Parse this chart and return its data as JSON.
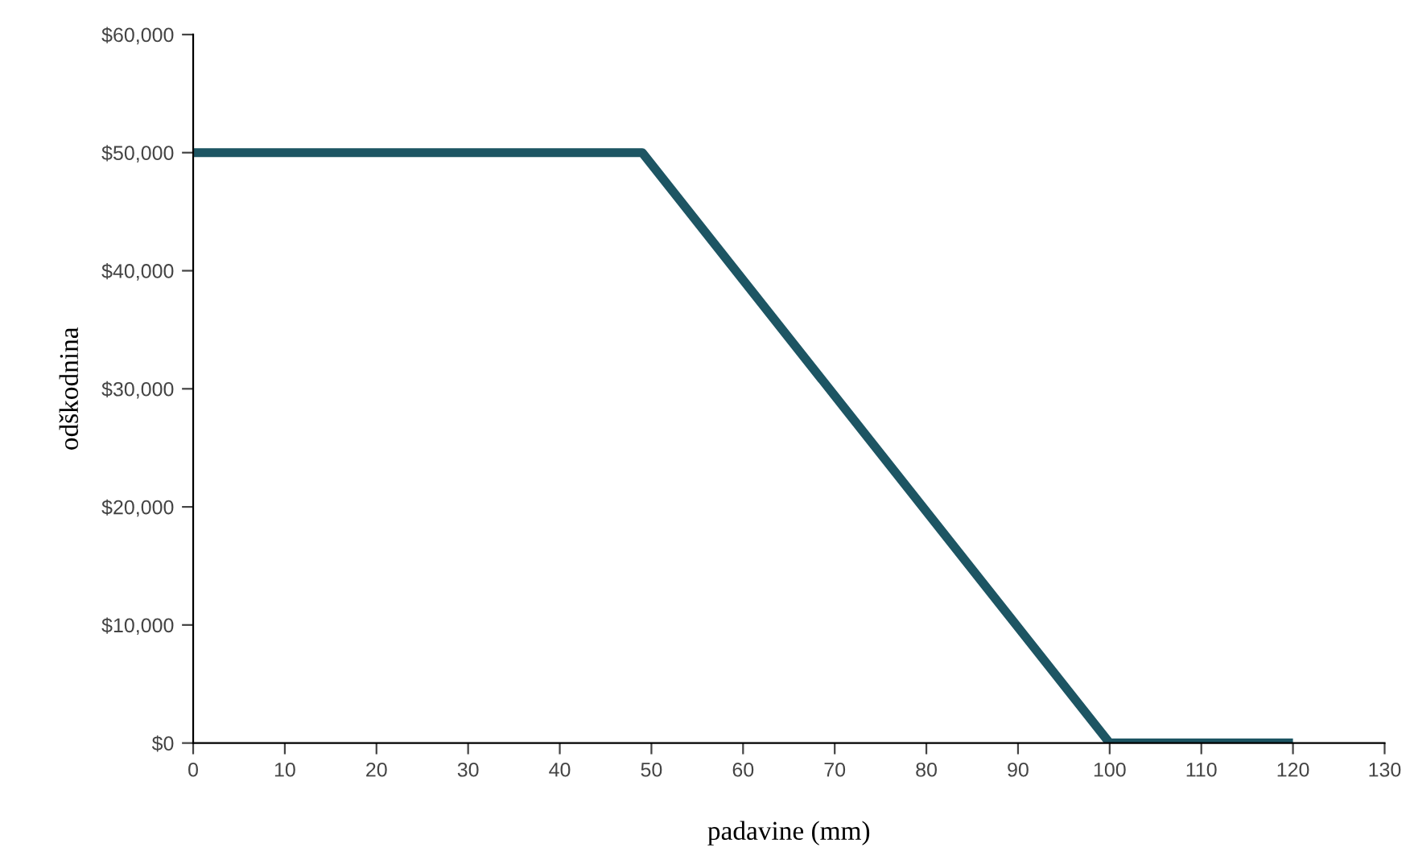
{
  "chart_data": {
    "type": "line",
    "xlabel": "padavine (mm)",
    "ylabel": "odškodnina",
    "series": [
      {
        "color": "#1d5563",
        "x": [
          0,
          49,
          100,
          120
        ],
        "values": [
          50000,
          50000,
          0,
          0
        ]
      }
    ],
    "xlim": [
      0,
      130
    ],
    "xticks": [
      0,
      10,
      20,
      30,
      40,
      50,
      60,
      70,
      80,
      90,
      100,
      110,
      120,
      130
    ],
    "ylim": [
      0,
      60000
    ],
    "yticks": [
      {
        "value": 0,
        "label": "$0"
      },
      {
        "value": 10000,
        "label": "$10,000"
      },
      {
        "value": 20000,
        "label": "$20,000"
      },
      {
        "value": 30000,
        "label": "$30,000"
      },
      {
        "value": 40000,
        "label": "$40,000"
      },
      {
        "value": 50000,
        "label": "$50,000"
      },
      {
        "value": 60000,
        "label": "$60,000"
      }
    ],
    "grid": false,
    "marker": "none",
    "line_style": "solid"
  }
}
